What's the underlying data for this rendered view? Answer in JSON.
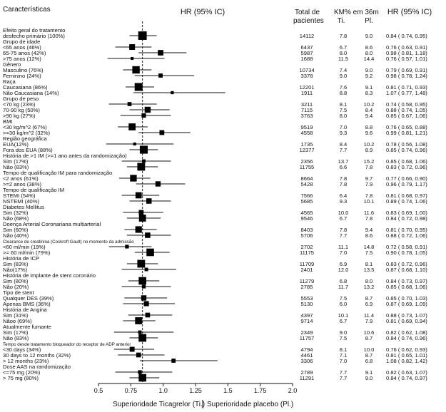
{
  "header": {
    "characteristics": "Características",
    "hr_left": "HR (95% IC)",
    "total_line1": "Total de",
    "total_line2": "pacientes",
    "km_line1": "KM% em 36m",
    "km_ti": "Ti.",
    "km_pl": "Pl.",
    "hr_right": "HR (95% IC)"
  },
  "chart_data": {
    "type": "forest",
    "title": "",
    "xlabel_left": "Superioridade Ticagrelor (Ti.)",
    "xlabel_right": "Superioridade placebo (Pl.)",
    "xlim": [
      0.5,
      2.0
    ],
    "xticks": [
      "0.5",
      "0.75",
      "1.0",
      "1.25",
      "1.5",
      "1.75",
      "2.0"
    ],
    "reference_line": 0.84,
    "rows": [
      {
        "label": "Efeito geral do tratamento",
        "header": true
      },
      {
        "label": "desfecho primário (100%)",
        "hr": 0.84,
        "lo": 0.74,
        "hi": 0.95,
        "n": "14112",
        "ti": "7.8",
        "pl": "9.0",
        "hr_text": "0.84 ( 0.74,  0.95)"
      },
      {
        "label": "Grupo de idade",
        "header": true
      },
      {
        "label": "<65 anos (46%)",
        "hr": 0.76,
        "lo": 0.63,
        "hi": 0.91,
        "n": "6437",
        "ti": "6.7",
        "pl": "8.6",
        "hr_text": "0.76 ( 0.63,  0.91)"
      },
      {
        "label": "65-75 anos (42%)",
        "hr": 0.98,
        "lo": 0.81,
        "hi": 1.18,
        "n": "5987",
        "ti": "8.0",
        "pl": "8.0",
        "hr_text": "0.98 ( 0.81,  1.18)"
      },
      {
        "label": ">75 anos (12%)",
        "hr": 0.76,
        "lo": 0.57,
        "hi": 1.01,
        "n": "1688",
        "ti": "11.5",
        "pl": "14.4",
        "hr_text": "0.76 ( 0.57,  1.01)"
      },
      {
        "label": "Gênero",
        "header": true
      },
      {
        "label": "Masculino (76%)",
        "hr": 0.79,
        "lo": 0.69,
        "hi": 0.91,
        "n": "10734",
        "ti": "7.4",
        "pl": "9.0",
        "hr_text": "0.79 ( 0.69,  0.91)"
      },
      {
        "label": "Feminino (24%)",
        "hr": 0.98,
        "lo": 0.78,
        "hi": 1.24,
        "n": "3378",
        "ti": "9.0",
        "pl": "9.2",
        "hr_text": "0.98 ( 0.78,  1.24)"
      },
      {
        "label": "Raça",
        "header": true
      },
      {
        "label": "Caucasiana (86%)",
        "hr": 0.81,
        "lo": 0.71,
        "hi": 0.93,
        "n": "12201",
        "ti": "7.6",
        "pl": "9.1",
        "hr_text": "0.81 ( 0.71,  0.93)"
      },
      {
        "label": "Não Caucasiana (14%)",
        "hr": 1.07,
        "lo": 0.77,
        "hi": 1.48,
        "n": "1911",
        "ti": "8.8",
        "pl": "8.3",
        "hr_text": "1.07 ( 0.77,  1.48)"
      },
      {
        "label": "Grupo de peso",
        "header": true
      },
      {
        "label": "<70 kg (23%)",
        "hr": 0.74,
        "lo": 0.58,
        "hi": 0.95,
        "n": "3211",
        "ti": "8.1",
        "pl": "10.2",
        "hr_text": "0.74 ( 0.58,  0.95)"
      },
      {
        "label": "70-90 kg (50%)",
        "hr": 0.88,
        "lo": 0.74,
        "hi": 1.05,
        "n": "7115",
        "ti": "7.5",
        "pl": "8.4",
        "hr_text": "0.88 ( 0.74,  1.05)"
      },
      {
        "label": ">90 kg (27%)",
        "hr": 0.85,
        "lo": 0.67,
        "hi": 1.06,
        "n": "3763",
        "ti": "8.0",
        "pl": "9.4",
        "hr_text": "0.85 ( 0.67,  1.06)"
      },
      {
        "label": "BMI",
        "header": true
      },
      {
        "label": "<30 kg/m^2 (67%)",
        "hr": 0.76,
        "lo": 0.65,
        "hi": 0.88,
        "n": "9519",
        "ti": "7.0",
        "pl": "8.8",
        "hr_text": "0.76 ( 0.65,  0.88)"
      },
      {
        "label": ">=30 kg/m^2 (32%)",
        "hr": 0.99,
        "lo": 0.81,
        "hi": 1.21,
        "n": "4558",
        "ti": "9.3",
        "pl": "9.6",
        "hr_text": "0.99 ( 0.81,  1.21)"
      },
      {
        "label": "Região geográfica",
        "header": true
      },
      {
        "label": "EUA(12%)",
        "hr": 0.78,
        "lo": 0.56,
        "hi": 1.08,
        "n": "1735",
        "ti": "8.4",
        "pl": "10.2",
        "hr_text": "0.78 ( 0.56,  1.08)"
      },
      {
        "label": "Fora dos EUA (88%)",
        "hr": 0.85,
        "lo": 0.74,
        "hi": 0.96,
        "n": "12377",
        "ti": "7.7",
        "pl": "8.9",
        "hr_text": "0.85 ( 0.74,  0.96)"
      },
      {
        "label": "História de >1 IM (>=1 ano antes da randomização)",
        "header": true
      },
      {
        "label": "Sim (17%)",
        "hr": 0.85,
        "lo": 0.68,
        "hi": 1.06,
        "n": "2356",
        "ti": "13.7",
        "pl": "15.2",
        "hr_text": "0.85 ( 0.68,  1.06)"
      },
      {
        "label": "Não (83%)",
        "hr": 0.83,
        "lo": 0.72,
        "hi": 0.96,
        "n": "11755",
        "ti": "6.6",
        "pl": "7.8",
        "hr_text": "0.83 ( 0.72,  0.96)"
      },
      {
        "label": "Tempo de qualificação IM para randomização",
        "header": true
      },
      {
        "label": "<2 anos (61%)",
        "hr": 0.77,
        "lo": 0.66,
        "hi": 0.9,
        "n": "8664",
        "ti": "7.8",
        "pl": "9.7",
        "hr_text": "0.77 ( 0.66,  0.90)"
      },
      {
        "label": ">=2 anos (38%)",
        "hr": 0.96,
        "lo": 0.79,
        "hi": 1.17,
        "n": "5428",
        "ti": "7.8",
        "pl": "7.9",
        "hr_text": "0.96 ( 0.79,  1.17)"
      },
      {
        "label": "Tempo de qualificação IM",
        "header": true
      },
      {
        "label": "STEMI (54%)",
        "hr": 0.81,
        "lo": 0.68,
        "hi": 0.97,
        "n": "7566",
        "ti": "6.4",
        "pl": "7.8",
        "hr_text": "0.81 ( 0.68,  0.97)"
      },
      {
        "label": "NSTEMI (40%)",
        "hr": 0.89,
        "lo": 0.74,
        "hi": 1.06,
        "n": "5685",
        "ti": "9.3",
        "pl": "10.1",
        "hr_text": "0.89 ( 0.74,  1.06)"
      },
      {
        "label": "Diabetes Mellitus",
        "header": true
      },
      {
        "label": "Sim (32%)",
        "hr": 0.83,
        "lo": 0.69,
        "hi": 1.0,
        "n": "4565",
        "ti": "10.0",
        "pl": "11.6",
        "hr_text": "0.83 ( 0.69,  1.00)"
      },
      {
        "label": "Não (68%)",
        "hr": 0.84,
        "lo": 0.72,
        "hi": 0.98,
        "n": "9546",
        "ti": "6.7",
        "pl": "7.8",
        "hr_text": "0.84 ( 0.72,  0.98)"
      },
      {
        "label": "Doença Arterial Coronariana multiarterial",
        "header": true
      },
      {
        "label": "Sim (60%)",
        "hr": 0.81,
        "lo": 0.7,
        "hi": 0.95,
        "n": "8403",
        "ti": "7.8",
        "pl": "9.4",
        "hr_text": "0.81 ( 0.70,  0.95)"
      },
      {
        "label": "Não (40%)",
        "hr": 0.88,
        "lo": 0.72,
        "hi": 1.06,
        "n": "5706",
        "ti": "7.7",
        "pl": "8.6",
        "hr_text": "0.88 ( 0.72,  1.06)"
      },
      {
        "label": "Clearance de creatinina (Cockroft Gault) no momento da admissão",
        "header": true,
        "small": true
      },
      {
        "label": "<60 ml/min (19%)",
        "hr": 0.72,
        "lo": 0.58,
        "hi": 0.91,
        "n": "2702",
        "ti": "11.1",
        "pl": "14.8",
        "hr_text": "0.72 ( 0.58,  0.91)"
      },
      {
        "label": ">= 60 ml/min (79%)",
        "hr": 0.9,
        "lo": 0.78,
        "hi": 1.05,
        "n": "11175",
        "ti": "7.0",
        "pl": "7.5",
        "hr_text": "0.90 ( 0.78,  1.05)"
      },
      {
        "label": "História de ICP",
        "header": true
      },
      {
        "label": "Sim (83%)",
        "hr": 0.83,
        "lo": 0.72,
        "hi": 0.96,
        "n": "11709",
        "ti": "6.9",
        "pl": "8.1",
        "hr_text": "0.83 ( 0.72,  0.96)"
      },
      {
        "label": "Não(17%)",
        "hr": 0.87,
        "lo": 0.68,
        "hi": 1.1,
        "n": "2401",
        "ti": "12.0",
        "pl": "13.5",
        "hr_text": "0.87 ( 0.68,  1.10)"
      },
      {
        "label": "História de implante de stent coronário",
        "header": true
      },
      {
        "label": "Sim (80%)",
        "hr": 0.84,
        "lo": 0.73,
        "hi": 0.97,
        "n": "11279",
        "ti": "6.8",
        "pl": "8.0",
        "hr_text": "0.84 ( 0.73,  0.97)"
      },
      {
        "label": "Não (20%)",
        "hr": 0.85,
        "lo": 0.68,
        "hi": 1.06,
        "n": "2785",
        "ti": "11.7",
        "pl": "13.2",
        "hr_text": "0.85 ( 0.68,  1.06)"
      },
      {
        "label": "Tipo de stent",
        "header": true
      },
      {
        "label": "Qualquer DES (39%)",
        "hr": 0.85,
        "lo": 0.7,
        "hi": 1.03,
        "n": "5553",
        "ti": "7.5",
        "pl": "8.7",
        "hr_text": "0.85 ( 0.70,  1.03)"
      },
      {
        "label": "Apenas BMS (36%)",
        "hr": 0.87,
        "lo": 0.69,
        "hi": 1.09,
        "n": "5130",
        "ti": "6.0",
        "pl": "6.9",
        "hr_text": "0.87 ( 0.69,  1.09)"
      },
      {
        "label": "História de Angina",
        "header": true
      },
      {
        "label": "Sim (31%)",
        "hr": 0.88,
        "lo": 0.73,
        "hi": 1.07,
        "n": "4397",
        "ti": "10.1",
        "pl": "11.4",
        "hr_text": "0.88 ( 0.73,  1.07)"
      },
      {
        "label": "Nãoo (69%)",
        "hr": 0.81,
        "lo": 0.69,
        "hi": 0.94,
        "n": "9714",
        "ti": "6.7",
        "pl": "7.9",
        "hr_text": "0.81 ( 0.69,  0.94)"
      },
      {
        "label": "Atualmente fumante",
        "header": true
      },
      {
        "label": "Sim (17%)",
        "hr": 0.82,
        "lo": 0.62,
        "hi": 1.08,
        "n": "2349",
        "ti": "9.0",
        "pl": "10.6",
        "hr_text": "0.82 ( 0.62,  1.08)"
      },
      {
        "label": "Não (83%)",
        "hr": 0.84,
        "lo": 0.74,
        "hi": 0.96,
        "n": "11757",
        "ti": "7.5",
        "pl": "8.7",
        "hr_text": "0.84 ( 0.74,  0.96)"
      },
      {
        "label": "Tempo desde tratamento bloqueador do receptor de ADP anterior",
        "header": true,
        "small": true
      },
      {
        "label": "<30 days (34%)",
        "hr": 0.76,
        "lo": 0.62,
        "hi": 0.93,
        "n": "4794",
        "ti": "8.1",
        "pl": "10.0",
        "hr_text": "0.76 ( 0.62,  0.93)"
      },
      {
        "label": "30 days to 12 months (32%)",
        "hr": 0.81,
        "lo": 0.65,
        "hi": 1.01,
        "n": "4461",
        "ti": "7.1",
        "pl": "8.7",
        "hr_text": "0.81 ( 0.65,  1.01)"
      },
      {
        "label": "> 12 months (23%)",
        "hr": 1.08,
        "lo": 0.82,
        "hi": 1.42,
        "n": "3306",
        "ti": "7.0",
        "pl": "6.8",
        "hr_text": "1.08 ( 0.82,  1.42)"
      },
      {
        "label": "Dose AAS na randomização",
        "header": true
      },
      {
        "label": "<=75 mg (20%)",
        "hr": 0.82,
        "lo": 0.63,
        "hi": 1.07,
        "n": "2789",
        "ti": "7.7",
        "pl": "9.1",
        "hr_text": "0.82 ( 0.63,  1.07)"
      },
      {
        "label": "> 75 mg (80%)",
        "hr": 0.84,
        "lo": 0.74,
        "hi": 0.97,
        "n": "11291",
        "ti": "7.7",
        "pl": "9.0",
        "hr_text": "0.84 ( 0.74,  0.97)"
      }
    ]
  }
}
